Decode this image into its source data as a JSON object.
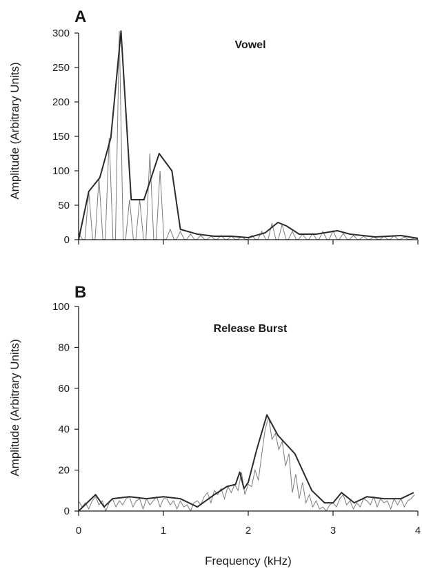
{
  "chart_data": [
    {
      "type": "line",
      "panel_label": "A",
      "title": "Vowel",
      "xlabel": "",
      "ylabel": "Amplitude (Arbitrary Units)",
      "xlim": [
        0,
        4
      ],
      "ylim": [
        0,
        300
      ],
      "yticks": [
        "0",
        "50",
        "100",
        "150",
        "200",
        "250",
        "300"
      ],
      "xticks": [],
      "grid": false,
      "series": [
        {
          "role": "envelope",
          "x": [
            0,
            0.12,
            0.25,
            0.38,
            0.5,
            0.62,
            0.77,
            0.95,
            1.1,
            1.2,
            1.4,
            1.6,
            1.8,
            2.0,
            2.2,
            2.35,
            2.45,
            2.6,
            2.8,
            3.05,
            3.2,
            3.5,
            3.8,
            4.0
          ],
          "y": [
            0,
            70,
            90,
            148,
            303,
            58,
            58,
            125,
            100,
            15,
            8,
            5,
            5,
            3,
            10,
            25,
            20,
            8,
            8,
            13,
            8,
            4,
            6,
            2
          ]
        },
        {
          "role": "spectrum",
          "harmonic_spacing_khz": 0.12,
          "x": [
            0,
            0.12,
            0.24,
            0.36,
            0.48,
            0.6,
            0.72,
            0.84,
            0.96,
            1.08,
            1.2,
            1.32,
            1.44,
            1.56,
            1.68,
            1.8,
            1.92,
            2.04,
            2.16,
            2.28,
            2.4,
            2.52,
            2.64,
            2.76,
            2.88,
            3.0,
            3.12,
            3.24,
            3.36,
            3.48,
            3.6,
            3.72,
            3.84,
            3.96
          ],
          "peaks": [
            10,
            70,
            90,
            148,
            303,
            58,
            58,
            125,
            100,
            15,
            12,
            8,
            6,
            5,
            6,
            5,
            4,
            6,
            12,
            24,
            22,
            12,
            8,
            9,
            12,
            13,
            9,
            6,
            5,
            4,
            5,
            6,
            4,
            2
          ]
        }
      ]
    },
    {
      "type": "line",
      "panel_label": "B",
      "title": "Release Burst",
      "xlabel": "Frequency (kHz)",
      "ylabel": "Amplitude (Arbitrary Units)",
      "xlim": [
        0,
        4
      ],
      "ylim": [
        0,
        100
      ],
      "yticks": [
        "0",
        "20",
        "40",
        "60",
        "80",
        "100"
      ],
      "xticks": [
        "0",
        "1",
        "2",
        "3",
        "4"
      ],
      "grid": false,
      "series": [
        {
          "role": "envelope",
          "x": [
            0,
            0.2,
            0.3,
            0.4,
            0.6,
            0.8,
            1.0,
            1.2,
            1.4,
            1.6,
            1.75,
            1.85,
            1.9,
            1.95,
            2.0,
            2.1,
            2.22,
            2.35,
            2.55,
            2.75,
            2.9,
            3.0,
            3.1,
            3.25,
            3.4,
            3.6,
            3.8,
            3.95
          ],
          "y": [
            0,
            8,
            2,
            6,
            7,
            6,
            7,
            6,
            2,
            8,
            12,
            13,
            19,
            11,
            14,
            30,
            47,
            37,
            28,
            10,
            4,
            4,
            9,
            4,
            7,
            6,
            6,
            9
          ]
        },
        {
          "role": "spectrum",
          "x": [
            0,
            0.04,
            0.08,
            0.12,
            0.16,
            0.2,
            0.24,
            0.28,
            0.32,
            0.36,
            0.4,
            0.44,
            0.48,
            0.52,
            0.56,
            0.6,
            0.64,
            0.68,
            0.72,
            0.76,
            0.8,
            0.84,
            0.88,
            0.92,
            0.96,
            1.0,
            1.04,
            1.08,
            1.12,
            1.16,
            1.2,
            1.24,
            1.28,
            1.32,
            1.36,
            1.4,
            1.44,
            1.48,
            1.52,
            1.56,
            1.6,
            1.64,
            1.68,
            1.72,
            1.76,
            1.8,
            1.84,
            1.88,
            1.92,
            1.96,
            2.0,
            2.04,
            2.08,
            2.12,
            2.16,
            2.2,
            2.24,
            2.28,
            2.32,
            2.36,
            2.4,
            2.44,
            2.48,
            2.52,
            2.56,
            2.6,
            2.64,
            2.68,
            2.72,
            2.76,
            2.8,
            2.84,
            2.88,
            2.92,
            2.96,
            3.0,
            3.04,
            3.08,
            3.12,
            3.16,
            3.2,
            3.24,
            3.28,
            3.32,
            3.36,
            3.4,
            3.44,
            3.48,
            3.52,
            3.56,
            3.6,
            3.64,
            3.68,
            3.72,
            3.76,
            3.8,
            3.84,
            3.88,
            3.92,
            3.96
          ],
          "y": [
            5,
            2,
            4,
            1,
            5,
            7,
            3,
            5,
            0,
            4,
            6,
            2,
            5,
            3,
            6,
            7,
            2,
            5,
            6,
            1,
            6,
            3,
            5,
            7,
            2,
            6,
            6,
            3,
            5,
            1,
            5,
            2,
            3,
            0,
            4,
            5,
            3,
            7,
            9,
            4,
            10,
            8,
            11,
            6,
            12,
            9,
            13,
            10,
            19,
            8,
            13,
            12,
            20,
            15,
            28,
            40,
            46,
            35,
            38,
            30,
            34,
            22,
            28,
            9,
            18,
            6,
            14,
            4,
            8,
            2,
            5,
            1,
            2,
            0,
            3,
            4,
            2,
            6,
            8,
            3,
            5,
            1,
            4,
            2,
            6,
            5,
            3,
            7,
            2,
            6,
            4,
            5,
            1,
            6,
            3,
            6,
            2,
            5,
            6,
            8
          ]
        }
      ]
    }
  ],
  "shared": {
    "xlabel": "Frequency (kHz)"
  }
}
